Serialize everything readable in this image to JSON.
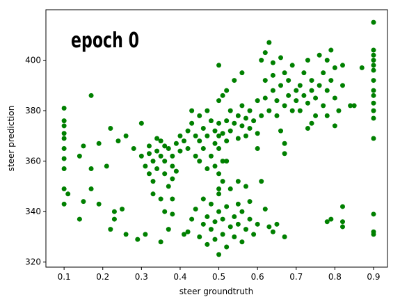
{
  "chart_data": {
    "type": "scatter",
    "annotation": "epoch 0",
    "xlabel": "steer groundtruth",
    "ylabel": "steer prediction",
    "color": "#008000",
    "xlim": [
      0.053,
      0.936
    ],
    "ylim": [
      318,
      420
    ],
    "xticks": [
      0.1,
      0.2,
      0.3,
      0.4,
      0.5,
      0.6,
      0.7,
      0.8,
      0.9
    ],
    "yticks": [
      320,
      340,
      360,
      380,
      400
    ],
    "x": [
      0.1,
      0.1,
      0.1,
      0.1,
      0.1,
      0.1,
      0.1,
      0.1,
      0.1,
      0.1,
      0.9,
      0.9,
      0.9,
      0.9,
      0.9,
      0.9,
      0.9,
      0.9,
      0.9,
      0.9,
      0.9,
      0.9,
      0.9,
      0.9,
      0.9,
      0.9,
      0.11,
      0.14,
      0.14,
      0.15,
      0.15,
      0.17,
      0.17,
      0.17,
      0.19,
      0.19,
      0.21,
      0.22,
      0.22,
      0.23,
      0.23,
      0.24,
      0.25,
      0.26,
      0.26,
      0.28,
      0.29,
      0.3,
      0.31,
      0.35,
      0.3,
      0.31,
      0.32,
      0.32,
      0.33,
      0.33,
      0.34,
      0.34,
      0.35,
      0.35,
      0.36,
      0.36,
      0.37,
      0.37,
      0.38,
      0.38,
      0.39,
      0.39,
      0.4,
      0.4,
      0.33,
      0.35,
      0.36,
      0.38,
      0.32,
      0.34,
      0.36,
      0.38,
      0.41,
      0.42,
      0.42,
      0.43,
      0.44,
      0.44,
      0.45,
      0.45,
      0.46,
      0.46,
      0.47,
      0.47,
      0.48,
      0.48,
      0.49,
      0.49,
      0.5,
      0.5,
      0.43,
      0.45,
      0.47,
      0.5,
      0.51,
      0.52,
      0.5,
      0.51,
      0.52,
      0.53,
      0.53,
      0.54,
      0.55,
      0.55,
      0.56,
      0.56,
      0.57,
      0.57,
      0.58,
      0.58,
      0.59,
      0.6,
      0.6,
      0.54,
      0.56,
      0.6,
      0.52,
      0.5,
      0.51,
      0.49,
      0.5,
      0.51,
      0.61,
      0.62,
      0.62,
      0.63,
      0.64,
      0.64,
      0.65,
      0.65,
      0.66,
      0.66,
      0.67,
      0.67,
      0.68,
      0.68,
      0.69,
      0.69,
      0.7,
      0.7,
      0.61,
      0.62,
      0.63,
      0.67,
      0.67,
      0.64,
      0.66,
      0.71,
      0.71,
      0.72,
      0.72,
      0.73,
      0.73,
      0.74,
      0.74,
      0.75,
      0.75,
      0.76,
      0.76,
      0.77,
      0.77,
      0.78,
      0.78,
      0.79,
      0.79,
      0.8,
      0.8,
      0.81,
      0.82,
      0.84,
      0.85,
      0.82,
      0.87,
      0.74,
      0.73,
      0.78,
      0.8,
      0.42,
      0.43,
      0.44,
      0.45,
      0.46,
      0.46,
      0.47,
      0.47,
      0.48,
      0.48,
      0.49,
      0.49,
      0.5,
      0.5,
      0.5,
      0.51,
      0.51,
      0.52,
      0.52,
      0.53,
      0.53,
      0.54,
      0.54,
      0.55,
      0.55,
      0.56,
      0.56,
      0.57,
      0.57,
      0.58,
      0.58,
      0.59,
      0.6,
      0.61,
      0.62,
      0.63,
      0.64,
      0.65,
      0.67,
      0.55,
      0.52,
      0.5,
      0.38,
      0.41,
      0.37,
      0.78,
      0.79,
      0.82,
      0.82,
      0.82
    ],
    "values": [
      343,
      349,
      357,
      361,
      365,
      369,
      371,
      374,
      376,
      381,
      331,
      332,
      339,
      369,
      377,
      380,
      383,
      386,
      388,
      392,
      396,
      398,
      400,
      402,
      404,
      415,
      347,
      337,
      362,
      366,
      344,
      386,
      357,
      349,
      343,
      367,
      358,
      333,
      373,
      340,
      337,
      368,
      341,
      370,
      331,
      365,
      329,
      375,
      331,
      328,
      362,
      358,
      366,
      355,
      360,
      352,
      364,
      357,
      362,
      368,
      355,
      360,
      365,
      350,
      362,
      358,
      367,
      356,
      364,
      370,
      347,
      345,
      340,
      353,
      363,
      369,
      366,
      345,
      368,
      372,
      365,
      375,
      370,
      362,
      378,
      368,
      373,
      365,
      380,
      370,
      376,
      362,
      372,
      367,
      375,
      370,
      380,
      360,
      357,
      384,
      386,
      388,
      398,
      371,
      376,
      372,
      380,
      375,
      369,
      378,
      374,
      382,
      370,
      377,
      380,
      373,
      376,
      371,
      384,
      392,
      395,
      365,
      368,
      365,
      360,
      358,
      355,
      352,
      378,
      385,
      392,
      380,
      388,
      394,
      378,
      384,
      390,
      372,
      382,
      395,
      386,
      392,
      380,
      398,
      388,
      384,
      400,
      403,
      407,
      367,
      363,
      399,
      401,
      390,
      380,
      386,
      395,
      383,
      400,
      388,
      392,
      378,
      385,
      390,
      402,
      382,
      395,
      388,
      400,
      392,
      404,
      397,
      385,
      380,
      390,
      382,
      382,
      398,
      397,
      375,
      373,
      378,
      374,
      332,
      337,
      341,
      330,
      335,
      345,
      327,
      338,
      333,
      343,
      329,
      336,
      323,
      340,
      347,
      331,
      337,
      326,
      342,
      334,
      349,
      330,
      338,
      343,
      335,
      328,
      340,
      333,
      350,
      337,
      344,
      331,
      335,
      352,
      341,
      334,
      332,
      335,
      330,
      352,
      360,
      349,
      339,
      331,
      333,
      336,
      337,
      336,
      342,
      334
    ]
  }
}
